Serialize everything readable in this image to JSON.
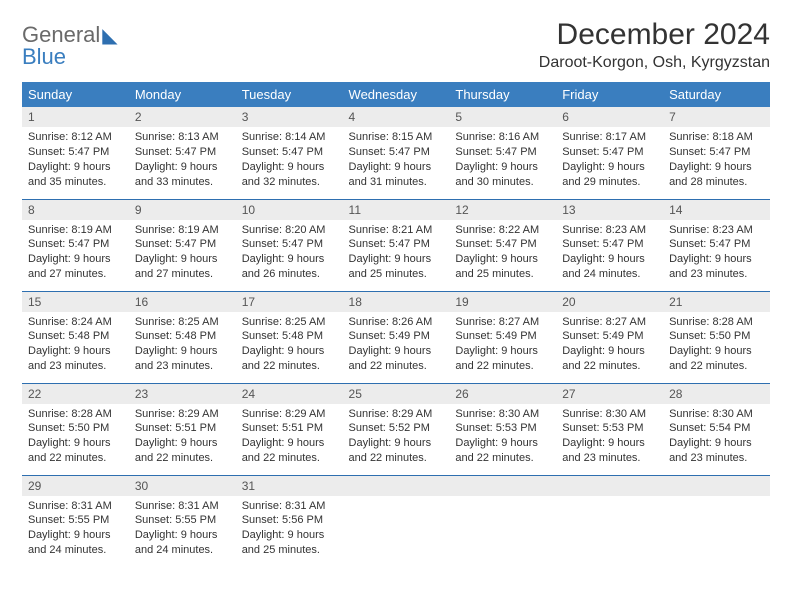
{
  "logo": {
    "line1": "General",
    "line2": "Blue"
  },
  "title": "December 2024",
  "location": "Daroot-Korgon, Osh, Kyrgyzstan",
  "colors": {
    "header_bg": "#3a7ebf",
    "header_text": "#ffffff",
    "daynum_bg": "#ececec",
    "border": "#2e6fb0",
    "body_text": "#333333",
    "logo_gray": "#6a6a6a",
    "logo_blue": "#3a7ebf"
  },
  "weekdays": [
    "Sunday",
    "Monday",
    "Tuesday",
    "Wednesday",
    "Thursday",
    "Friday",
    "Saturday"
  ],
  "weeks": [
    [
      {
        "n": "1",
        "sr": "8:12 AM",
        "ss": "5:47 PM",
        "dl": "9 hours and 35 minutes."
      },
      {
        "n": "2",
        "sr": "8:13 AM",
        "ss": "5:47 PM",
        "dl": "9 hours and 33 minutes."
      },
      {
        "n": "3",
        "sr": "8:14 AM",
        "ss": "5:47 PM",
        "dl": "9 hours and 32 minutes."
      },
      {
        "n": "4",
        "sr": "8:15 AM",
        "ss": "5:47 PM",
        "dl": "9 hours and 31 minutes."
      },
      {
        "n": "5",
        "sr": "8:16 AM",
        "ss": "5:47 PM",
        "dl": "9 hours and 30 minutes."
      },
      {
        "n": "6",
        "sr": "8:17 AM",
        "ss": "5:47 PM",
        "dl": "9 hours and 29 minutes."
      },
      {
        "n": "7",
        "sr": "8:18 AM",
        "ss": "5:47 PM",
        "dl": "9 hours and 28 minutes."
      }
    ],
    [
      {
        "n": "8",
        "sr": "8:19 AM",
        "ss": "5:47 PM",
        "dl": "9 hours and 27 minutes."
      },
      {
        "n": "9",
        "sr": "8:19 AM",
        "ss": "5:47 PM",
        "dl": "9 hours and 27 minutes."
      },
      {
        "n": "10",
        "sr": "8:20 AM",
        "ss": "5:47 PM",
        "dl": "9 hours and 26 minutes."
      },
      {
        "n": "11",
        "sr": "8:21 AM",
        "ss": "5:47 PM",
        "dl": "9 hours and 25 minutes."
      },
      {
        "n": "12",
        "sr": "8:22 AM",
        "ss": "5:47 PM",
        "dl": "9 hours and 25 minutes."
      },
      {
        "n": "13",
        "sr": "8:23 AM",
        "ss": "5:47 PM",
        "dl": "9 hours and 24 minutes."
      },
      {
        "n": "14",
        "sr": "8:23 AM",
        "ss": "5:47 PM",
        "dl": "9 hours and 23 minutes."
      }
    ],
    [
      {
        "n": "15",
        "sr": "8:24 AM",
        "ss": "5:48 PM",
        "dl": "9 hours and 23 minutes."
      },
      {
        "n": "16",
        "sr": "8:25 AM",
        "ss": "5:48 PM",
        "dl": "9 hours and 23 minutes."
      },
      {
        "n": "17",
        "sr": "8:25 AM",
        "ss": "5:48 PM",
        "dl": "9 hours and 22 minutes."
      },
      {
        "n": "18",
        "sr": "8:26 AM",
        "ss": "5:49 PM",
        "dl": "9 hours and 22 minutes."
      },
      {
        "n": "19",
        "sr": "8:27 AM",
        "ss": "5:49 PM",
        "dl": "9 hours and 22 minutes."
      },
      {
        "n": "20",
        "sr": "8:27 AM",
        "ss": "5:49 PM",
        "dl": "9 hours and 22 minutes."
      },
      {
        "n": "21",
        "sr": "8:28 AM",
        "ss": "5:50 PM",
        "dl": "9 hours and 22 minutes."
      }
    ],
    [
      {
        "n": "22",
        "sr": "8:28 AM",
        "ss": "5:50 PM",
        "dl": "9 hours and 22 minutes."
      },
      {
        "n": "23",
        "sr": "8:29 AM",
        "ss": "5:51 PM",
        "dl": "9 hours and 22 minutes."
      },
      {
        "n": "24",
        "sr": "8:29 AM",
        "ss": "5:51 PM",
        "dl": "9 hours and 22 minutes."
      },
      {
        "n": "25",
        "sr": "8:29 AM",
        "ss": "5:52 PM",
        "dl": "9 hours and 22 minutes."
      },
      {
        "n": "26",
        "sr": "8:30 AM",
        "ss": "5:53 PM",
        "dl": "9 hours and 22 minutes."
      },
      {
        "n": "27",
        "sr": "8:30 AM",
        "ss": "5:53 PM",
        "dl": "9 hours and 23 minutes."
      },
      {
        "n": "28",
        "sr": "8:30 AM",
        "ss": "5:54 PM",
        "dl": "9 hours and 23 minutes."
      }
    ],
    [
      {
        "n": "29",
        "sr": "8:31 AM",
        "ss": "5:55 PM",
        "dl": "9 hours and 24 minutes."
      },
      {
        "n": "30",
        "sr": "8:31 AM",
        "ss": "5:55 PM",
        "dl": "9 hours and 24 minutes."
      },
      {
        "n": "31",
        "sr": "8:31 AM",
        "ss": "5:56 PM",
        "dl": "9 hours and 25 minutes."
      },
      null,
      null,
      null,
      null
    ]
  ],
  "labels": {
    "sunrise": "Sunrise:",
    "sunset": "Sunset:",
    "daylight": "Daylight:"
  }
}
